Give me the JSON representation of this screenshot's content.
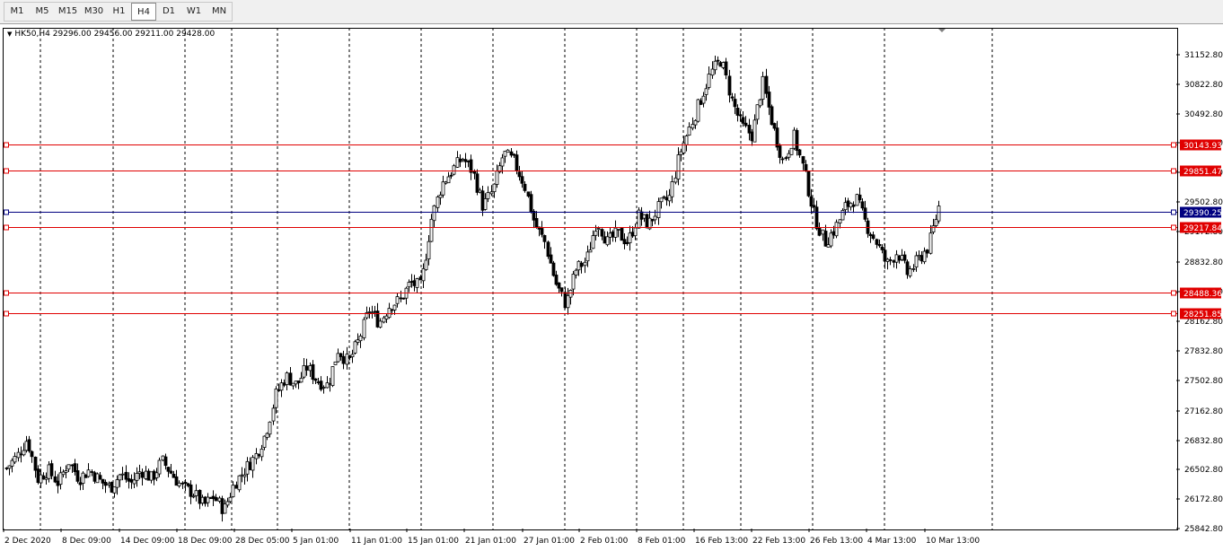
{
  "toolbar": {
    "timeframes": [
      "M1",
      "M5",
      "M15",
      "M30",
      "H1",
      "H4",
      "D1",
      "W1",
      "MN"
    ],
    "active": "H4"
  },
  "symbol_info": {
    "symbol": "HK50,H4",
    "open": "29296.00",
    "high": "29456.00",
    "low": "29211.00",
    "close": "29428.00"
  },
  "colors": {
    "level_line": "#e00000",
    "current_line": "#000080",
    "candle_up": "#ffffff",
    "candle_down": "#000000",
    "grid": "#000000"
  },
  "chart_data": {
    "type": "candlestick",
    "title": "",
    "y_range": [
      25842.8,
      31400
    ],
    "y_ticks": [
      "31152.80",
      "30822.80",
      "30492.80",
      "30162.80",
      "29832.80",
      "29502.80",
      "29172.80",
      "28832.80",
      "28502.80",
      "28162.80",
      "27832.80",
      "27502.80",
      "27162.80",
      "26832.80",
      "26502.80",
      "26172.80",
      "25842.80"
    ],
    "x_ticks": [
      "2 Dec 2020",
      "8 Dec 09:00",
      "14 Dec 09:00",
      "18 Dec 09:00",
      "28 Dec 05:00",
      "5 Jan 01:00",
      "11 Jan 01:00",
      "15 Jan 01:00",
      "21 Jan 01:00",
      "27 Jan 01:00",
      "2 Feb 01:00",
      "8 Feb 01:00",
      "16 Feb 13:00",
      "22 Feb 13:00",
      "26 Feb 13:00",
      "4 Mar 13:00",
      "10 Mar 13:00"
    ],
    "price_levels": [
      {
        "label": "30143.93",
        "value": 30143.93,
        "kind": "level"
      },
      {
        "label": "29851.47",
        "value": 29851.47,
        "kind": "level"
      },
      {
        "label": "29390.25",
        "value": 29390.25,
        "kind": "current"
      },
      {
        "label": "29217.84",
        "value": 29217.84,
        "kind": "level"
      },
      {
        "label": "28488.36",
        "value": 28488.36,
        "kind": "level"
      },
      {
        "label": "28251.85",
        "value": 28251.85,
        "kind": "level"
      }
    ],
    "close_path": [
      26520,
      26650,
      26850,
      26400,
      26500,
      26350,
      26600,
      26400,
      26500,
      26380,
      26300,
      26450,
      26350,
      26500,
      26400,
      26600,
      26450,
      26300,
      26250,
      26100,
      26200,
      26050,
      26350,
      26500,
      26650,
      26900,
      27350,
      27550,
      27450,
      27650,
      27500,
      27450,
      27850,
      27700,
      27950,
      28300,
      28150,
      28350,
      28400,
      28600,
      28550,
      29300,
      29700,
      29850,
      30000,
      29850,
      29450,
      29650,
      30050,
      29950,
      29700,
      29250,
      29050,
      28600,
      28350,
      28750,
      28850,
      29300,
      29050,
      29150,
      29050,
      29350,
      29250,
      29450,
      29550,
      30050,
      30350,
      30650,
      30950,
      31100,
      30650,
      30350,
      30250,
      30850,
      30350,
      29950,
      30250,
      29850,
      29350,
      29050,
      29200,
      29450,
      29550,
      29250,
      29050,
      28800,
      28950,
      28700,
      28850,
      29000,
      29450
    ]
  }
}
